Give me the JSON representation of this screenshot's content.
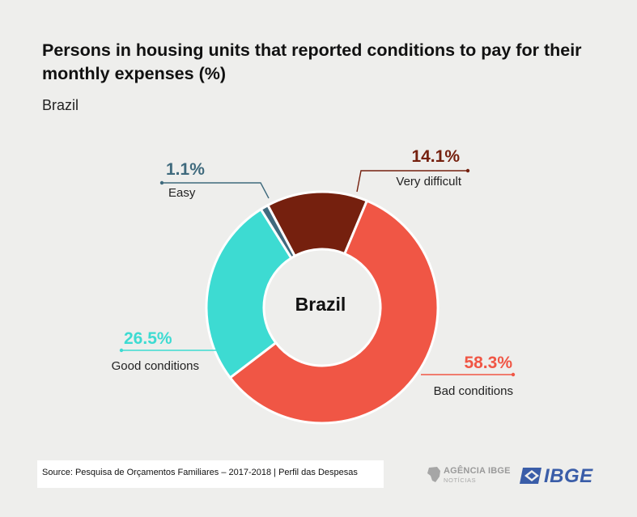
{
  "title": "Persons in housing units that reported conditions to pay for their monthly expenses (%)",
  "subtitle": "Brazil",
  "chart_data": {
    "type": "pie",
    "variant": "donut",
    "center_label": "Brazil",
    "slices": [
      {
        "label": "Very difficult",
        "value": 14.1,
        "display": "14.1%",
        "color": "#75200e"
      },
      {
        "label": "Bad conditions",
        "value": 58.3,
        "display": "58.3%",
        "color": "#f05645"
      },
      {
        "label": "Good conditions",
        "value": 26.5,
        "display": "26.5%",
        "color": "#3ddbd2"
      },
      {
        "label": "Easy",
        "value": 1.1,
        "display": "1.1%",
        "color": "#3f6a7d"
      }
    ],
    "label_color_easy": "#3f6a7d",
    "label_color_very_difficult": "#75200e",
    "label_color_good": "#3ddbd2",
    "label_color_bad": "#f05645"
  },
  "footer": {
    "source": "Source: Pesquisa de Orçamentos Familiares – 2017-2018  |  Perfil das Despesas",
    "agencia_name": "AGÊNCIA IBGE",
    "agencia_sub": "NOTÍCIAS",
    "ibge": "IBGE"
  }
}
